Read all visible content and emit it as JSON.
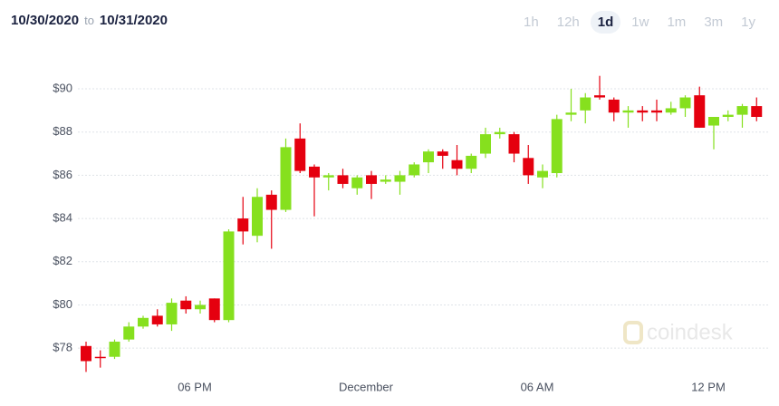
{
  "header": {
    "from": "10/30/2020",
    "separator": "to",
    "to": "10/31/2020",
    "ranges": [
      "1h",
      "12h",
      "1d",
      "1w",
      "1m",
      "3m",
      "1y"
    ],
    "active_range": 2,
    "watermark": "coindesk"
  },
  "chart_data": {
    "type": "candlestick",
    "categories": [
      null,
      null,
      null,
      null,
      null,
      null,
      null,
      null,
      "06 PM",
      null,
      null,
      null,
      null,
      null,
      null,
      null,
      null,
      null,
      null,
      null,
      "December",
      null,
      null,
      null,
      null,
      null,
      null,
      null,
      null,
      null,
      null,
      null,
      "06 AM",
      null,
      null,
      null,
      null,
      null,
      null,
      null,
      null,
      null,
      null,
      null,
      "12 PM",
      null,
      null,
      null
    ],
    "open": [
      78.1,
      77.6,
      77.6,
      78.4,
      79.0,
      79.5,
      79.1,
      80.2,
      79.8,
      80.3,
      79.3,
      84.0,
      83.2,
      85.1,
      84.4,
      87.7,
      86.4,
      85.9,
      86.0,
      85.4,
      86.0,
      85.7,
      85.7,
      86.0,
      86.6,
      87.1,
      86.7,
      86.3,
      87.0,
      87.9,
      87.9,
      86.8,
      85.9,
      86.1,
      88.8,
      89.0,
      89.7,
      89.5,
      88.9,
      89.0,
      89.0,
      88.9,
      89.1,
      89.7,
      88.3,
      88.7,
      88.8,
      89.2
    ],
    "high": [
      78.3,
      77.9,
      78.4,
      79.2,
      79.5,
      79.8,
      80.3,
      80.4,
      80.2,
      80.3,
      83.5,
      85.0,
      85.4,
      85.3,
      87.7,
      88.4,
      86.5,
      86.1,
      86.3,
      86.0,
      86.2,
      86.0,
      86.2,
      86.6,
      87.2,
      87.2,
      87.4,
      87.0,
      88.2,
      88.2,
      88.0,
      87.4,
      86.5,
      88.8,
      90.0,
      89.8,
      90.6,
      89.6,
      89.2,
      89.2,
      89.5,
      89.4,
      89.7,
      90.1,
      88.7,
      89.0,
      89.3,
      89.6
    ],
    "low": [
      76.9,
      77.1,
      77.5,
      78.3,
      78.9,
      79.0,
      78.8,
      79.6,
      79.6,
      79.2,
      79.2,
      82.8,
      82.9,
      82.6,
      84.3,
      86.1,
      84.1,
      85.3,
      85.4,
      85.1,
      84.9,
      85.6,
      85.1,
      85.9,
      86.1,
      86.3,
      86.0,
      86.1,
      86.8,
      87.7,
      86.6,
      85.6,
      85.4,
      85.9,
      88.5,
      88.4,
      89.5,
      88.5,
      88.2,
      88.5,
      88.5,
      88.8,
      88.7,
      88.2,
      87.2,
      88.5,
      88.2,
      88.5
    ],
    "close": [
      77.4,
      77.55,
      78.3,
      79.0,
      79.4,
      79.1,
      80.1,
      79.8,
      80.0,
      79.3,
      83.4,
      83.4,
      85.0,
      84.4,
      87.3,
      86.2,
      85.9,
      86.0,
      85.6,
      85.9,
      85.6,
      85.8,
      86.0,
      86.5,
      87.1,
      86.9,
      86.3,
      86.9,
      87.9,
      88.0,
      87.0,
      86.0,
      86.2,
      88.6,
      88.9,
      89.6,
      89.6,
      88.9,
      89.0,
      88.9,
      88.9,
      89.1,
      89.6,
      88.2,
      88.7,
      88.8,
      89.2,
      88.7
    ],
    "up_color": "#86e01e",
    "down_color": "#e5000f",
    "ylim": [
      76.8,
      91
    ],
    "yticks": [
      {
        "value": 78,
        "label": "$78"
      },
      {
        "value": 80,
        "label": "$80"
      },
      {
        "value": 82,
        "label": "$82"
      },
      {
        "value": 84,
        "label": "$84"
      },
      {
        "value": 86,
        "label": "$86"
      },
      {
        "value": 88,
        "label": "$88"
      },
      {
        "value": 90,
        "label": "$90"
      }
    ],
    "grid": true
  }
}
